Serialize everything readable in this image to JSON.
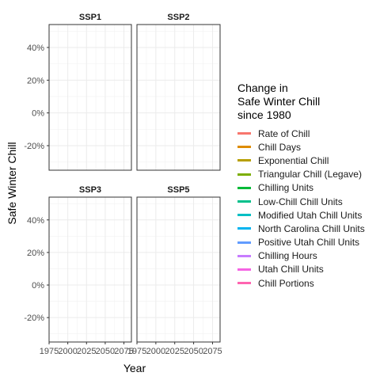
{
  "chart_data": {
    "type": "line",
    "facets": [
      "SSP1",
      "SSP2",
      "SSP3",
      "SSP5"
    ],
    "xlabel": "Year",
    "ylabel": "Safe Winter Chill",
    "x_ticks": [
      1975,
      2000,
      2025,
      2050,
      2075
    ],
    "xlim": [
      1975,
      2085
    ],
    "y_ticks": [
      "-20%",
      "0%",
      "20%",
      "40%"
    ],
    "y_tick_values": [
      -20,
      0,
      20,
      40
    ],
    "ylim": [
      -35,
      54
    ],
    "grid": true,
    "legend_position": "right",
    "legend_title": "Change in\nSafe Winter Chill\nsince 1980",
    "series": [
      {
        "name": "Rate of Chill",
        "color": "#F8766D",
        "values": []
      },
      {
        "name": "Chill Days",
        "color": "#DE8C00",
        "values": []
      },
      {
        "name": "Exponential Chill",
        "color": "#B79F00",
        "values": []
      },
      {
        "name": "Triangular Chill (Legave)",
        "color": "#7CAE00",
        "values": []
      },
      {
        "name": "Chilling Units",
        "color": "#00BA38",
        "values": []
      },
      {
        "name": "Low-Chill Chill Units",
        "color": "#00C08B",
        "values": []
      },
      {
        "name": "Modified Utah Chill Units",
        "color": "#00BFC4",
        "values": []
      },
      {
        "name": "North Carolina Chill Units",
        "color": "#00B4F0",
        "values": []
      },
      {
        "name": "Positive Utah Chill Units",
        "color": "#619CFF",
        "values": []
      },
      {
        "name": "Chilling Hours",
        "color": "#C77CFF",
        "values": []
      },
      {
        "name": "Utah Chill Units",
        "color": "#F564E3",
        "values": []
      },
      {
        "name": "Chill Portions",
        "color": "#FF64B0",
        "values": []
      }
    ]
  }
}
